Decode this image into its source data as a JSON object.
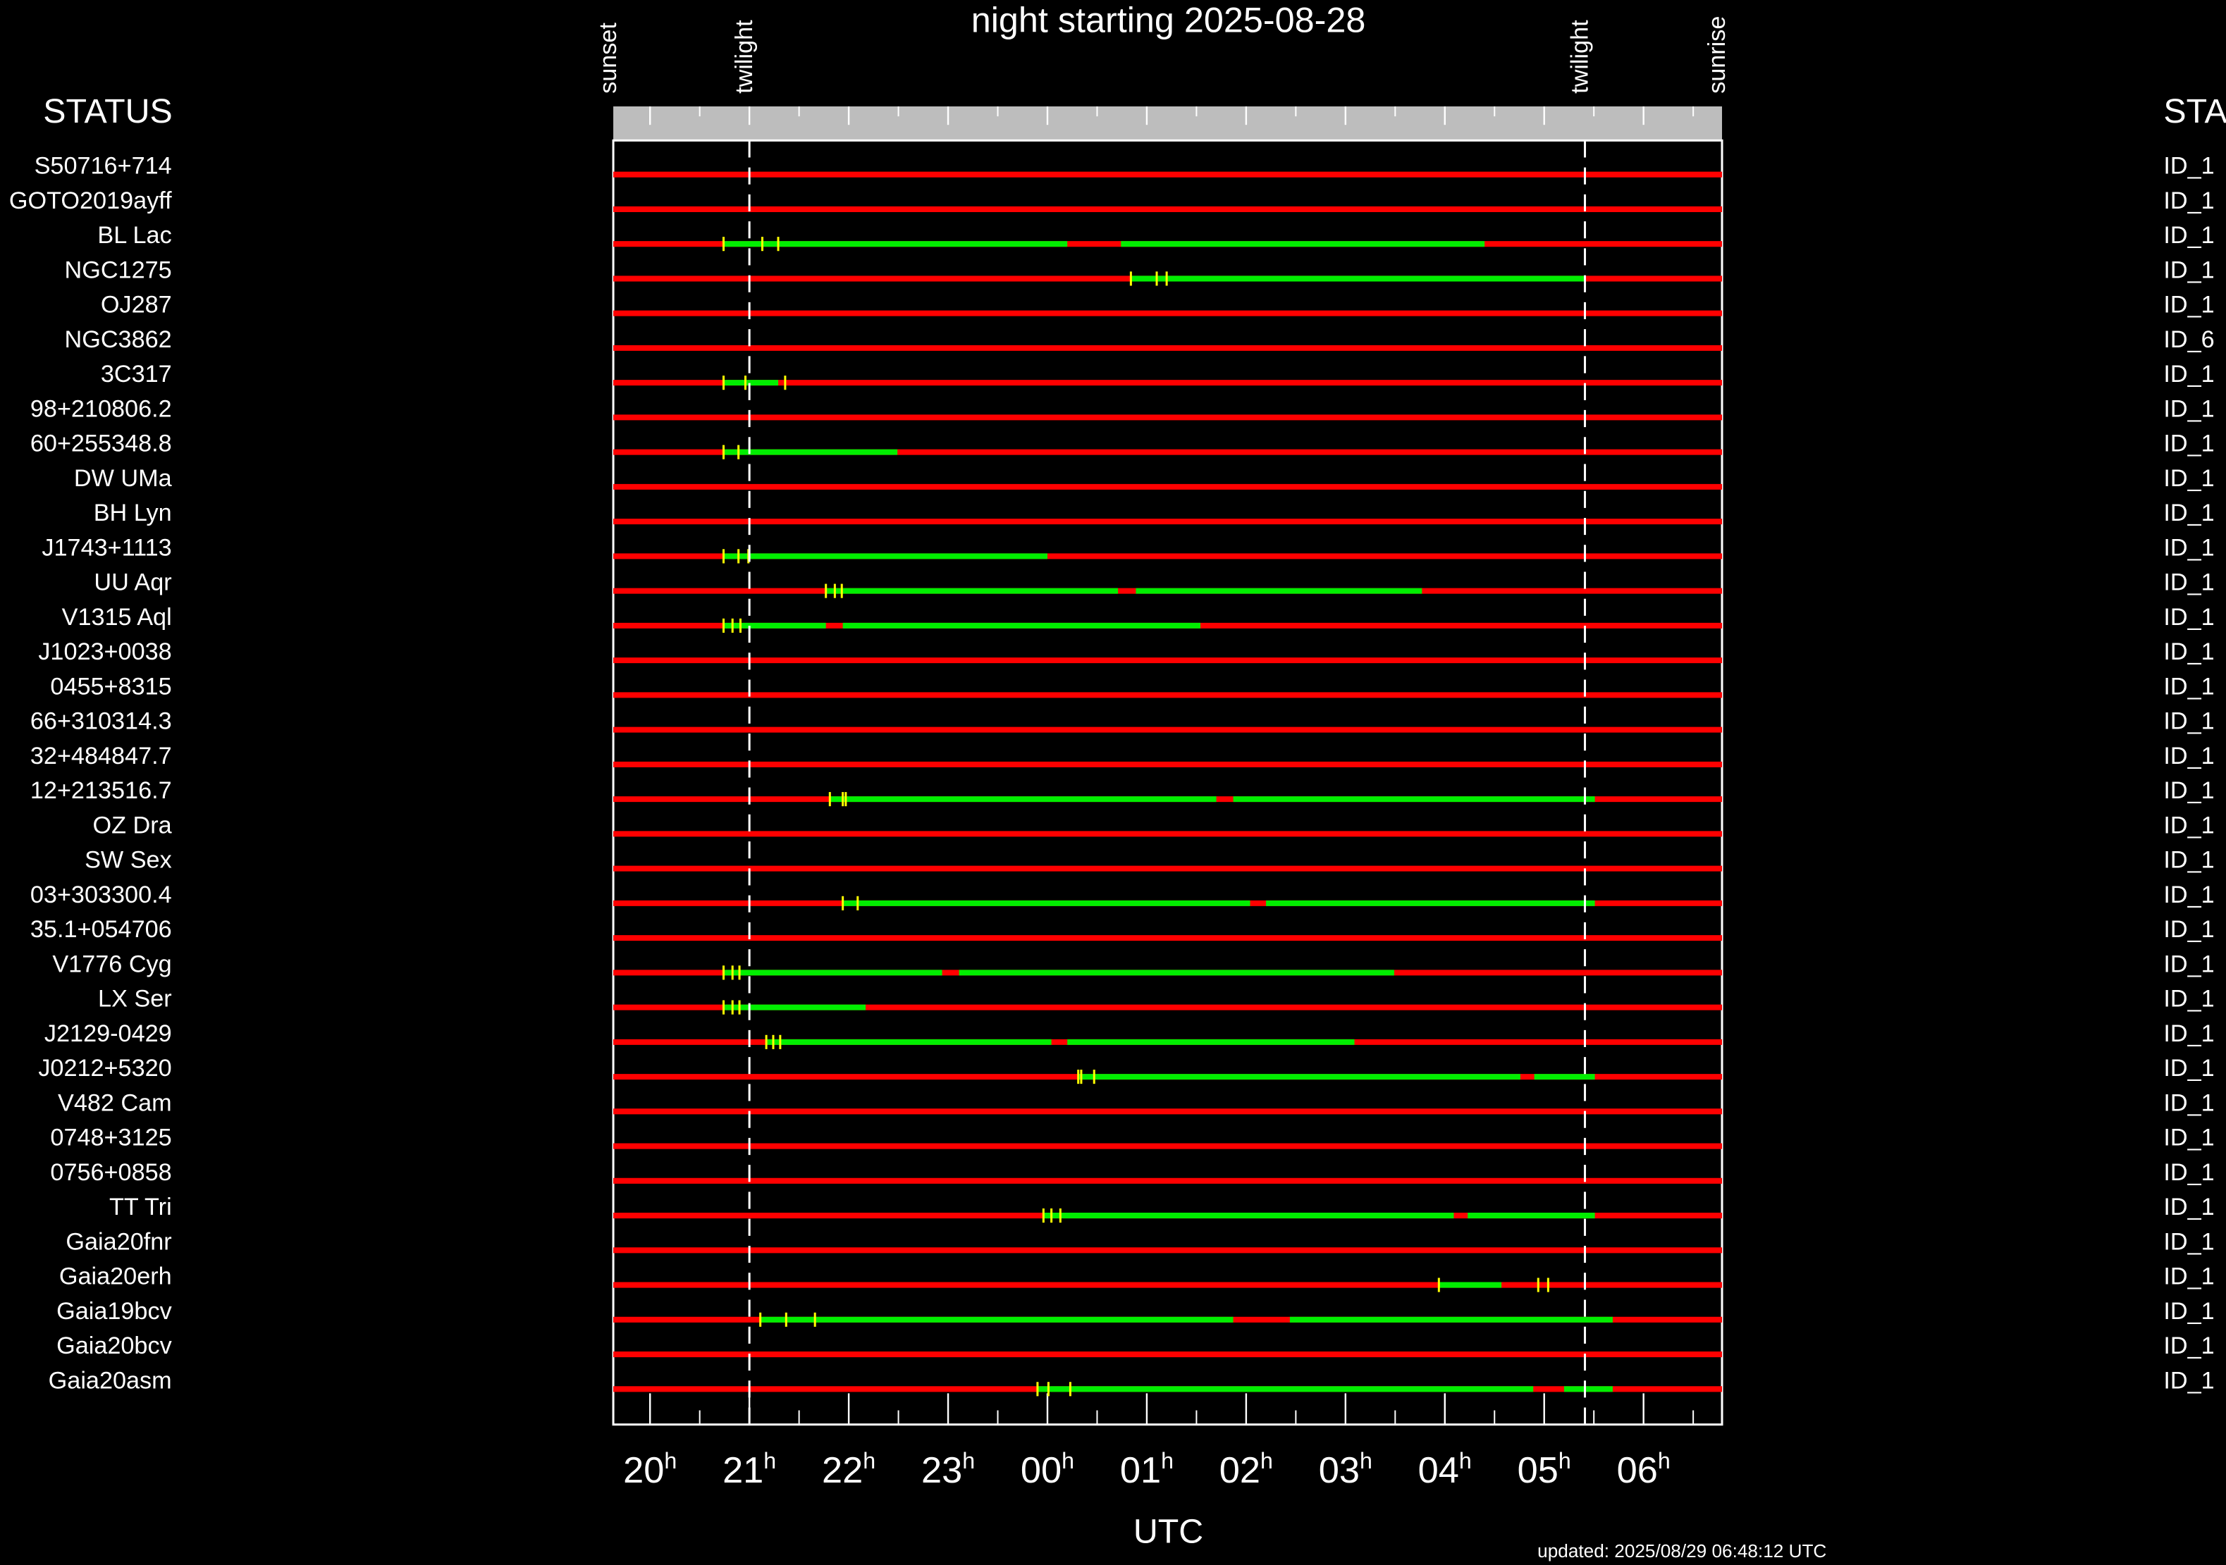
{
  "title": "night starting 2025-08-28",
  "header_left": "STATUS",
  "header_right": "STA",
  "axis": {
    "xlim": [
      19.63,
      30.79
    ],
    "xlabel": "UTC",
    "tick_suffix": "h",
    "xticks": [
      {
        "value": 20,
        "label": "20"
      },
      {
        "value": 21,
        "label": "21"
      },
      {
        "value": 22,
        "label": "22"
      },
      {
        "value": 23,
        "label": "23"
      },
      {
        "value": 24,
        "label": "00"
      },
      {
        "value": 25,
        "label": "01"
      },
      {
        "value": 26,
        "label": "02"
      },
      {
        "value": 27,
        "label": "03"
      },
      {
        "value": 28,
        "label": "04"
      },
      {
        "value": 29,
        "label": "05"
      },
      {
        "value": 30,
        "label": "06"
      }
    ],
    "xminor": [
      20.5,
      21.5,
      22.5,
      23.5,
      24.5,
      25.5,
      26.5,
      27.5,
      28.5,
      29.5,
      30.5
    ]
  },
  "events": [
    {
      "label": "sunset",
      "value": 19.63
    },
    {
      "label": "twilight",
      "value": 21.0,
      "dashed": true
    },
    {
      "label": "twilight",
      "value": 29.41,
      "dashed": true
    },
    {
      "label": "sunrise",
      "value": 30.79
    }
  ],
  "rows": [
    {
      "name": "S50716+714",
      "id": "ID_1",
      "visible": [],
      "marks": []
    },
    {
      "name": "GOTO2019ayff",
      "id": "ID_1",
      "visible": [],
      "marks": []
    },
    {
      "name": "BL Lac",
      "id": "ID_1",
      "visible": [
        [
          20.74,
          24.2
        ],
        [
          24.74,
          28.4
        ]
      ],
      "marks": [
        20.74,
        21.13,
        21.29
      ]
    },
    {
      "name": "NGC1275",
      "id": "ID_1",
      "visible": [
        [
          24.84,
          29.41
        ]
      ],
      "marks": [
        24.84,
        25.1,
        25.2
      ]
    },
    {
      "name": "OJ287",
      "id": "ID_1",
      "visible": [],
      "marks": []
    },
    {
      "name": "NGC3862",
      "id": "ID_6",
      "visible": [],
      "marks": []
    },
    {
      "name": "3C317",
      "id": "ID_1",
      "visible": [
        [
          20.74,
          21.29
        ]
      ],
      "marks": [
        20.74,
        20.96,
        21.36
      ]
    },
    {
      "name": "98+210806.2",
      "id": "ID_1",
      "visible": [],
      "marks": []
    },
    {
      "name": "60+255348.8",
      "id": "ID_1",
      "visible": [
        [
          20.74,
          22.49
        ]
      ],
      "marks": [
        20.74,
        20.89
      ]
    },
    {
      "name": "DW UMa",
      "id": "ID_1",
      "visible": [],
      "marks": []
    },
    {
      "name": "BH Lyn",
      "id": "ID_1",
      "visible": [],
      "marks": []
    },
    {
      "name": "J1743+1113",
      "id": "ID_1",
      "visible": [
        [
          20.74,
          24.0
        ]
      ],
      "marks": [
        20.74,
        20.89,
        20.99
      ]
    },
    {
      "name": "UU Aqr",
      "id": "ID_1",
      "visible": [
        [
          21.77,
          24.71
        ],
        [
          24.89,
          27.77
        ]
      ],
      "marks": [
        21.77,
        21.86,
        21.93
      ]
    },
    {
      "name": "V1315 Aql",
      "id": "ID_1",
      "visible": [
        [
          20.74,
          21.77
        ],
        [
          21.94,
          25.54
        ]
      ],
      "marks": [
        20.74,
        20.83,
        20.91
      ]
    },
    {
      "name": "J1023+0038",
      "id": "ID_1",
      "visible": [],
      "marks": []
    },
    {
      "name": "0455+8315",
      "id": "ID_1",
      "visible": [],
      "marks": []
    },
    {
      "name": "66+310314.3",
      "id": "ID_1",
      "visible": [],
      "marks": []
    },
    {
      "name": "32+484847.7",
      "id": "ID_1",
      "visible": [],
      "marks": []
    },
    {
      "name": "12+213516.7",
      "id": "ID_1",
      "visible": [
        [
          21.81,
          25.7
        ],
        [
          25.87,
          29.51
        ]
      ],
      "marks": [
        21.81,
        21.94,
        21.97
      ]
    },
    {
      "name": "OZ Dra",
      "id": "ID_1",
      "visible": [],
      "marks": []
    },
    {
      "name": "SW Sex",
      "id": "ID_1",
      "visible": [],
      "marks": []
    },
    {
      "name": "03+303300.4",
      "id": "ID_1",
      "visible": [
        [
          21.94,
          26.04
        ],
        [
          26.2,
          29.51
        ]
      ],
      "marks": [
        21.94,
        22.09
      ]
    },
    {
      "name": "35.1+054706",
      "id": "ID_1",
      "visible": [],
      "marks": []
    },
    {
      "name": "V1776 Cyg",
      "id": "ID_1",
      "visible": [
        [
          20.74,
          22.94
        ],
        [
          23.11,
          27.49
        ]
      ],
      "marks": [
        20.74,
        20.83,
        20.9
      ]
    },
    {
      "name": "LX Ser",
      "id": "ID_1",
      "visible": [
        [
          20.74,
          22.17
        ]
      ],
      "marks": [
        20.74,
        20.83,
        20.9
      ]
    },
    {
      "name": "J2129-0429",
      "id": "ID_1",
      "visible": [
        [
          21.17,
          24.04
        ],
        [
          24.2,
          27.09
        ]
      ],
      "marks": [
        21.17,
        21.24,
        21.31
      ]
    },
    {
      "name": "J0212+5320",
      "id": "ID_1",
      "visible": [
        [
          24.31,
          28.76
        ],
        [
          28.9,
          29.51
        ]
      ],
      "marks": [
        24.31,
        24.34,
        24.47
      ]
    },
    {
      "name": "V482 Cam",
      "id": "ID_1",
      "visible": [],
      "marks": []
    },
    {
      "name": "0748+3125",
      "id": "ID_1",
      "visible": [],
      "marks": []
    },
    {
      "name": "0756+0858",
      "id": "ID_1",
      "visible": [],
      "marks": []
    },
    {
      "name": "TT Tri",
      "id": "ID_1",
      "visible": [
        [
          23.96,
          28.09
        ],
        [
          28.23,
          29.51
        ]
      ],
      "marks": [
        23.96,
        24.04,
        24.13
      ]
    },
    {
      "name": "Gaia20fnr",
      "id": "ID_1",
      "visible": [],
      "marks": []
    },
    {
      "name": "Gaia20erh",
      "id": "ID_1",
      "visible": [
        [
          27.94,
          28.57
        ]
      ],
      "marks": [
        27.94,
        28.94,
        29.04
      ]
    },
    {
      "name": "Gaia19bcv",
      "id": "ID_1",
      "visible": [
        [
          21.11,
          25.87
        ],
        [
          26.44,
          29.69
        ]
      ],
      "marks": [
        21.11,
        21.37,
        21.66
      ]
    },
    {
      "name": "Gaia20bcv",
      "id": "ID_1",
      "visible": [],
      "marks": []
    },
    {
      "name": "Gaia20asm",
      "id": "ID_1",
      "visible": [
        [
          23.9,
          28.89
        ],
        [
          29.2,
          29.69
        ]
      ],
      "marks": [
        23.9,
        24.01,
        24.23
      ]
    }
  ],
  "updated": "updated: 2025/08/29 06:48:12 UTC"
}
